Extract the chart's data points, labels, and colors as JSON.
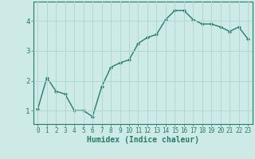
{
  "x": [
    0,
    1,
    2,
    3,
    4,
    5,
    6,
    7,
    8,
    9,
    10,
    11,
    12,
    13,
    14,
    15,
    16,
    17,
    18,
    19,
    20,
    21,
    22,
    23
  ],
  "y": [
    1.05,
    2.1,
    1.65,
    1.55,
    1.0,
    1.0,
    0.8,
    1.8,
    2.45,
    2.6,
    2.7,
    3.25,
    3.45,
    3.55,
    4.05,
    4.35,
    4.35,
    4.05,
    3.9,
    3.9,
    3.8,
    3.65,
    3.8,
    3.4
  ],
  "line_color": "#2a7a6b",
  "marker": "D",
  "marker_size": 2.0,
  "line_width": 1.0,
  "xlabel": "Humidex (Indice chaleur)",
  "xlim": [
    -0.5,
    23.5
  ],
  "ylim": [
    0.55,
    4.65
  ],
  "yticks": [
    1,
    2,
    3,
    4
  ],
  "xticks": [
    0,
    1,
    2,
    3,
    4,
    5,
    6,
    7,
    8,
    9,
    10,
    11,
    12,
    13,
    14,
    15,
    16,
    17,
    18,
    19,
    20,
    21,
    22,
    23
  ],
  "bg_color": "#cdeae6",
  "grid_color": "#b0d8d3",
  "tick_label_fontsize": 5.5,
  "xlabel_fontsize": 7.0,
  "tick_color": "#2a7a6b",
  "spine_color": "#2a7a6b"
}
